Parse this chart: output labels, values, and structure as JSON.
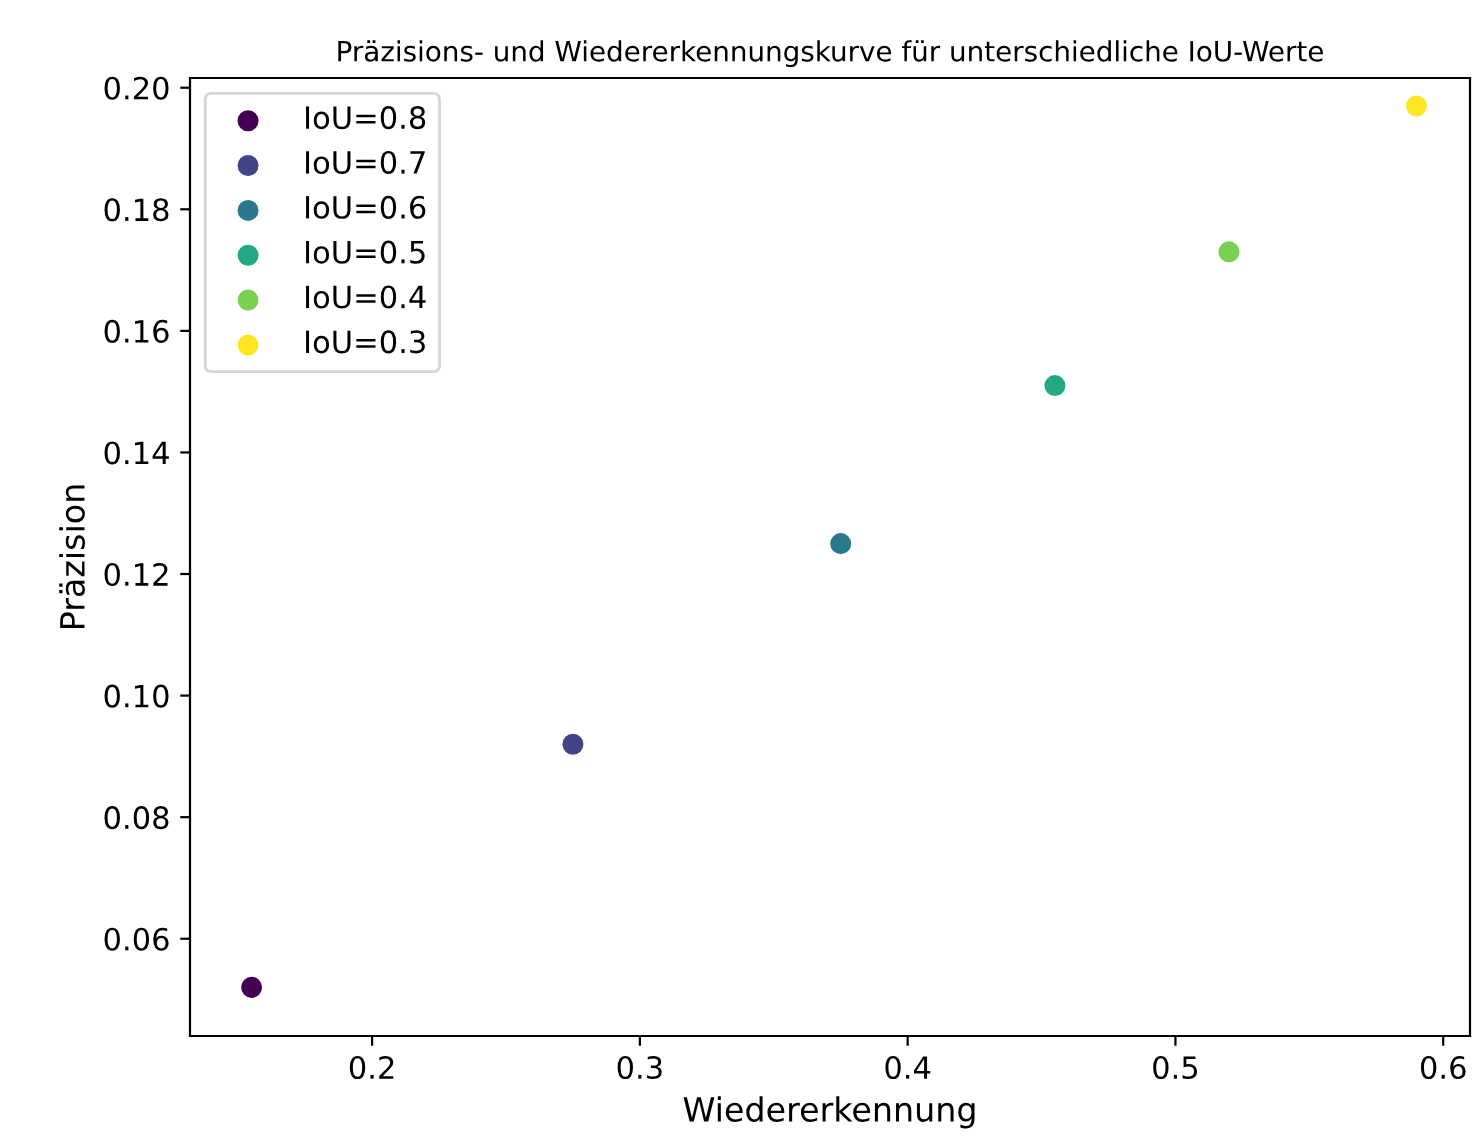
{
  "chart_data": {
    "type": "scatter",
    "title": "Präzisions- und Wiedererkennungskurve für unterschiedliche IoU-Werte",
    "xlabel": "Wiedererkennung",
    "ylabel": "Präzision",
    "series": [
      {
        "name": "IoU=0.8",
        "color": "#440154",
        "x": [
          0.155
        ],
        "values": [
          0.052
        ]
      },
      {
        "name": "IoU=0.7",
        "color": "#414487",
        "x": [
          0.275
        ],
        "values": [
          0.092
        ]
      },
      {
        "name": "IoU=0.6",
        "color": "#2a788e",
        "x": [
          0.375
        ],
        "values": [
          0.125
        ]
      },
      {
        "name": "IoU=0.5",
        "color": "#22a884",
        "x": [
          0.455
        ],
        "values": [
          0.151
        ]
      },
      {
        "name": "IoU=0.4",
        "color": "#7ad151",
        "x": [
          0.52
        ],
        "values": [
          0.173
        ]
      },
      {
        "name": "IoU=0.3",
        "color": "#fde725",
        "x": [
          0.59
        ],
        "values": [
          0.197
        ]
      }
    ],
    "xlim": [
      0.132,
      0.61
    ],
    "ylim": [
      0.044,
      0.2016
    ],
    "xticks": [
      0.2,
      0.3,
      0.4,
      0.5,
      0.6
    ],
    "yticks": [
      {
        "value": 0.06,
        "label": "0.06"
      },
      {
        "value": 0.08,
        "label": "0.08"
      },
      {
        "value": 0.1,
        "label": "0.10"
      },
      {
        "value": 0.12,
        "label": "0.12"
      },
      {
        "value": 0.14,
        "label": "0.14"
      },
      {
        "value": 0.16,
        "label": "0.16"
      },
      {
        "value": 0.18,
        "label": "0.18"
      },
      {
        "value": 0.2,
        "label": "0.20"
      }
    ],
    "marker": "circle",
    "grid": false,
    "legend": "top left"
  }
}
